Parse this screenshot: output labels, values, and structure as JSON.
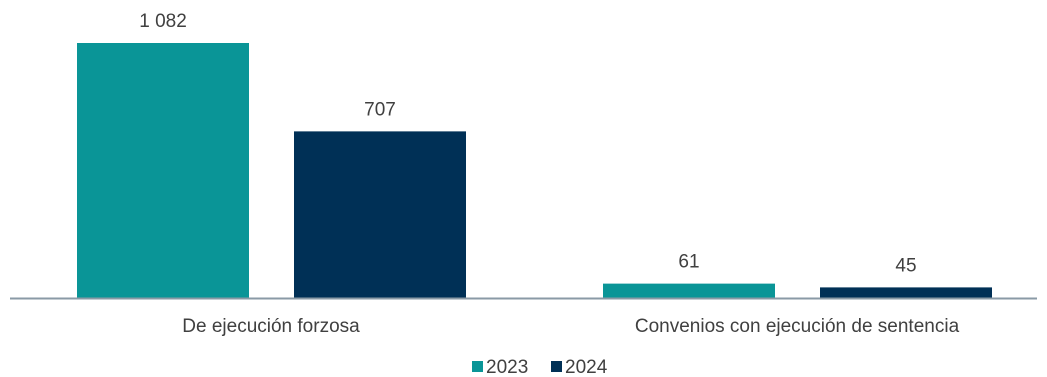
{
  "chart_data": {
    "type": "bar",
    "categories": [
      "De ejecución forzosa",
      "Convenios con ejecución de sentencia"
    ],
    "series": [
      {
        "name": "2023",
        "values": [
          1082,
          61
        ],
        "labels": [
          "1 082",
          "61"
        ],
        "color": "#0a9597"
      },
      {
        "name": "2024",
        "values": [
          707,
          45
        ],
        "labels": [
          "707",
          "45"
        ],
        "color": "#003056"
      }
    ],
    "ylim": [
      0,
      1082
    ],
    "grid": false,
    "legend_position": "bottom-center",
    "axis_color": "#8a9aa6"
  }
}
